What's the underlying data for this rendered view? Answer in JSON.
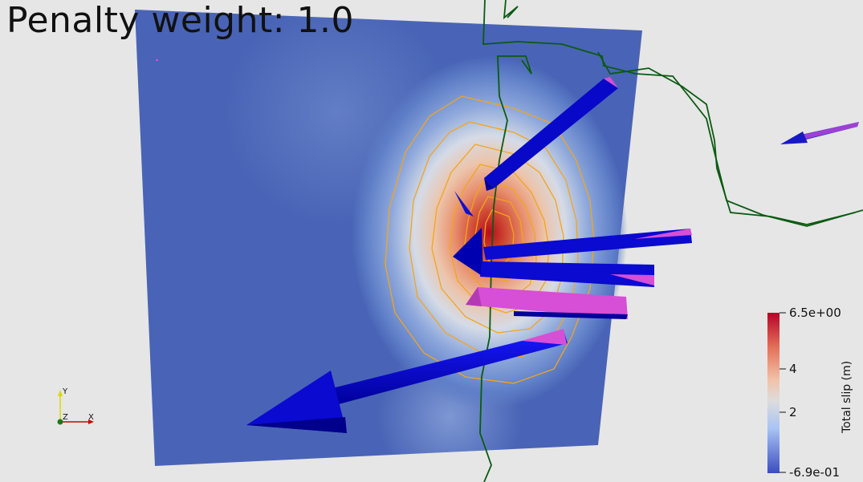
{
  "title": "Penalty weight: 1.0",
  "colorbar": {
    "title": "Total slip (m)",
    "max_label": "6.5e+00",
    "mid_high_label": "4",
    "mid_low_label": "2",
    "min_label": "-6.9e-01",
    "colors": {
      "high": "#b40426",
      "mid": "#dddddd",
      "low": "#3b4cc0"
    }
  },
  "axes_triad": {
    "y": "Y",
    "z": "Z",
    "x": "X"
  },
  "colors": {
    "background": "#e6e6e6",
    "fault_surface": "#4a64b8",
    "slip_peak": "#b8251f",
    "contour": "#f0a020",
    "trace_line": "#0a5a10",
    "arrow_body": "#0b0bd2",
    "arrow_tip": "#d64fd6"
  },
  "icons": [
    "axes-triad-icon"
  ]
}
